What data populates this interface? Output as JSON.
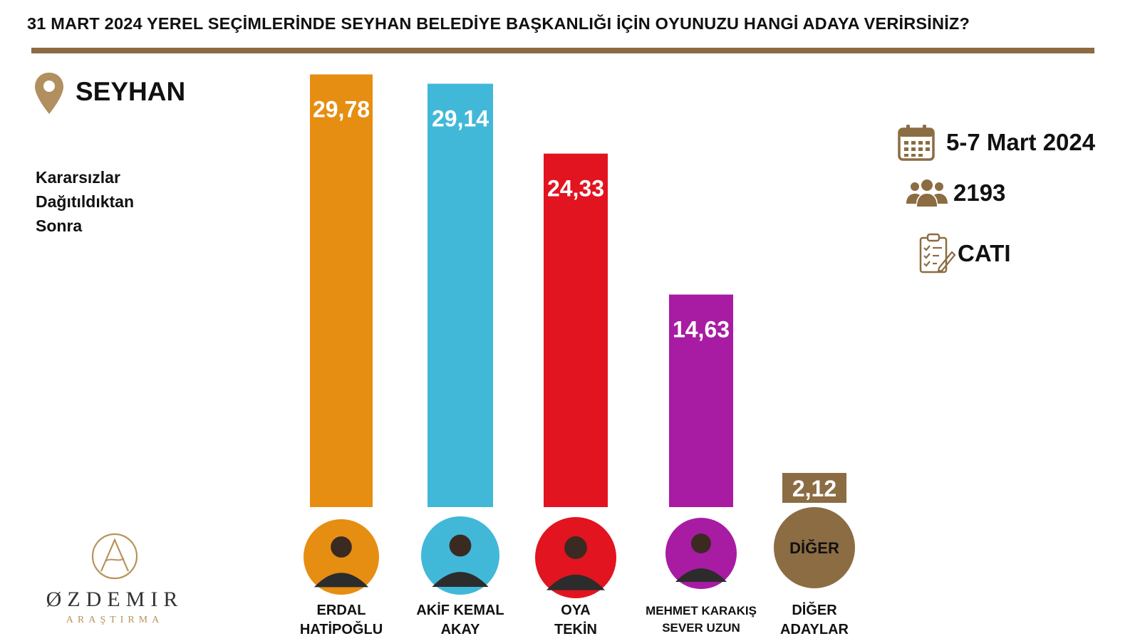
{
  "header": {
    "title": "31 MART 2024 YEREL SEÇİMLERİNDE SEYHAN BELEDİYE BAŞKANLIĞI İÇİN OYUNUZU HANGİ ADAYA VERİRSİNİZ?"
  },
  "region": {
    "name": "SEYHAN",
    "icon": "location-pin-icon"
  },
  "note": {
    "lines": [
      "Kararsızlar",
      "Dağıtıldıktan",
      "Sonra"
    ]
  },
  "info": {
    "date": "5-7 Mart 2024",
    "date_icon": "calendar-icon",
    "sample_size": "2193",
    "sample_icon": "people-group-icon",
    "method": "CATI",
    "method_icon": "clipboard-checklist-icon"
  },
  "logo": {
    "name": "ØZDEMIR",
    "subtitle": "ARAŞTIRMA"
  },
  "colors": {
    "accent": "#8C6C42",
    "logo_gold": "#B8935A",
    "label_text": "#ffffff"
  },
  "chart_data": {
    "type": "bar",
    "categories": [
      "ERDAL HATİPOĞLU",
      "AKİF KEMAL AKAY",
      "OYA TEKİN",
      "MEHMET KARAKIŞ SEVER UZUN",
      "DİĞER ADAYLAR"
    ],
    "values": [
      29.78,
      29.14,
      24.33,
      14.63,
      2.12
    ],
    "value_labels": [
      "29,78",
      "29,14",
      "24,33",
      "14,63",
      "2,12"
    ],
    "name_lines": [
      [
        "ERDAL",
        "HATİPOĞLU"
      ],
      [
        "AKİF KEMAL",
        "AKAY"
      ],
      [
        "OYA",
        "TEKİN"
      ],
      [
        "MEHMET KARAKIŞ",
        "SEVER UZUN"
      ],
      [
        "DİĞER",
        "ADAYLAR"
      ]
    ],
    "colors": [
      "#E68E12",
      "#42B8D8",
      "#E2141F",
      "#A81CA4",
      "#8C6C42"
    ],
    "avatar_labels": [
      "",
      "",
      "",
      "",
      "DİĞER"
    ],
    "ylim": [
      0,
      30
    ],
    "grid": false,
    "legend": "none"
  }
}
